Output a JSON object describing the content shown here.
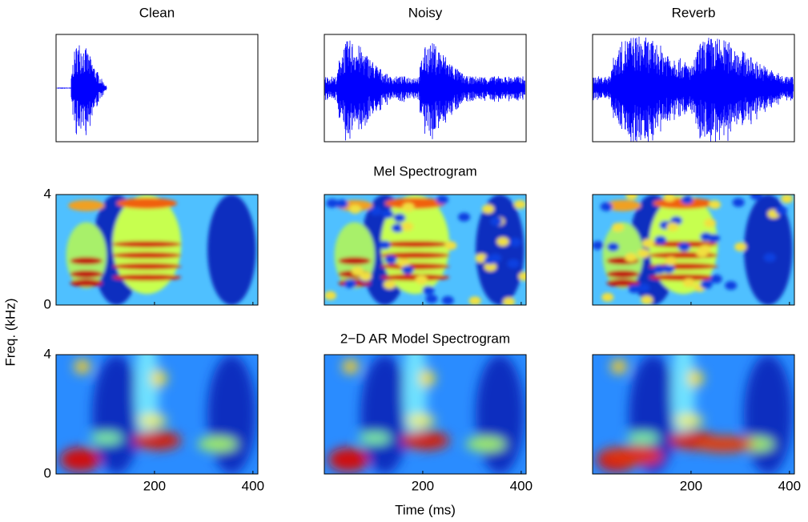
{
  "chart_data": {
    "type": "spectrogram-grid",
    "columns": [
      "Clean",
      "Noisy",
      "Reverb"
    ],
    "rows": [
      "Mel Spectrogram",
      "2−D AR Model Spectrogram"
    ],
    "ylabel": "Freq. (kHz)",
    "xlabel": "Time (ms)",
    "xlim": [
      0,
      410
    ],
    "xticks": [
      200,
      400
    ],
    "ylim": [
      0,
      4
    ],
    "yticks": [
      0,
      4
    ],
    "wave_color": "#0000ff"
  }
}
